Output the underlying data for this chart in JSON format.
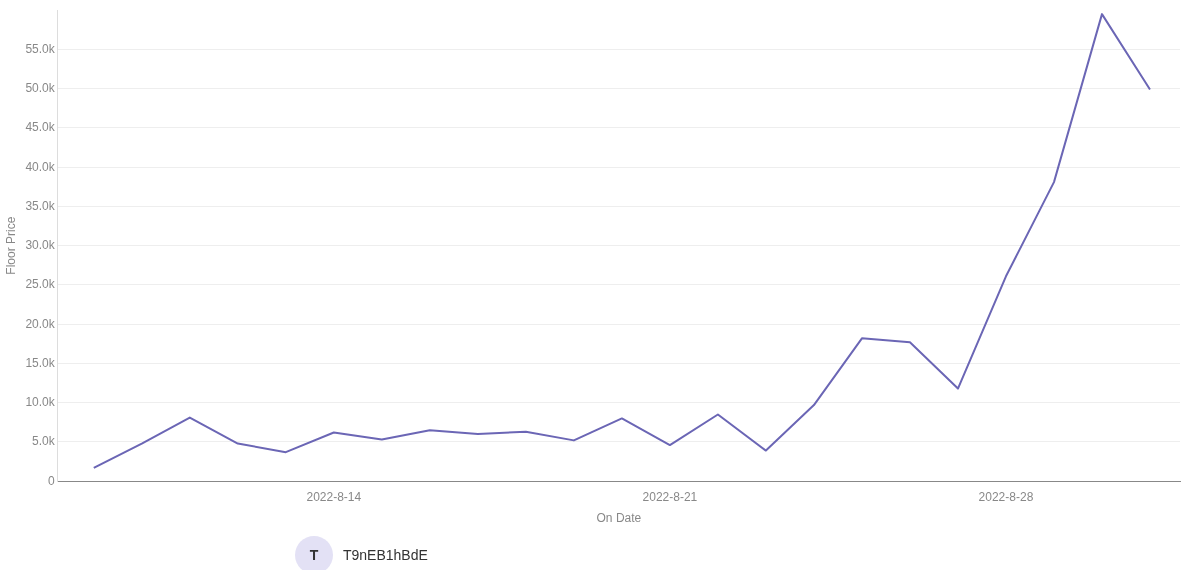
{
  "chart_data": {
    "type": "line",
    "xlabel": "On Date",
    "ylabel": "Floor Price",
    "x": [
      "2022-08-09",
      "2022-08-10",
      "2022-08-11",
      "2022-08-12",
      "2022-08-13",
      "2022-08-14",
      "2022-08-15",
      "2022-08-16",
      "2022-08-17",
      "2022-08-18",
      "2022-08-19",
      "2022-08-20",
      "2022-08-21",
      "2022-08-22",
      "2022-08-23",
      "2022-08-24",
      "2022-08-25",
      "2022-08-26",
      "2022-08-27",
      "2022-08-28",
      "2022-08-29",
      "2022-08-30",
      "2022-08-31"
    ],
    "series": [
      {
        "color": "#6b66b5",
        "values": [
          1700,
          4800,
          8100,
          4800,
          3700,
          6200,
          5300,
          6500,
          6000,
          6300,
          5200,
          8000,
          4600,
          8500,
          3900,
          9700,
          18200,
          17700,
          11800,
          26100,
          38100,
          59500,
          49900
        ]
      }
    ],
    "xlim": [
      "2022-08-08T06:00",
      "2022-08-31T15:00"
    ],
    "xticks": [
      {
        "value": "2022-08-14",
        "label": "2022-8-14"
      },
      {
        "value": "2022-08-21",
        "label": "2022-8-21"
      },
      {
        "value": "2022-08-28",
        "label": "2022-8-28"
      }
    ],
    "ylim": [
      0,
      60000
    ],
    "yticks": [
      {
        "value": 0,
        "label": "0"
      },
      {
        "value": 5000,
        "label": "5.0k"
      },
      {
        "value": 10000,
        "label": "10.0k"
      },
      {
        "value": 15000,
        "label": "15.0k"
      },
      {
        "value": 20000,
        "label": "20.0k"
      },
      {
        "value": 25000,
        "label": "25.0k"
      },
      {
        "value": 30000,
        "label": "30.0k"
      },
      {
        "value": 35000,
        "label": "35.0k"
      },
      {
        "value": 40000,
        "label": "40.0k"
      },
      {
        "value": 45000,
        "label": "45.0k"
      },
      {
        "value": 50000,
        "label": "50.0k"
      },
      {
        "value": 55000,
        "label": "55.0k"
      }
    ],
    "grid": "y",
    "marker": "none",
    "line_style": "solid",
    "legend": false,
    "annotations": [
      "T",
      "T9nEB1hBdE"
    ]
  }
}
